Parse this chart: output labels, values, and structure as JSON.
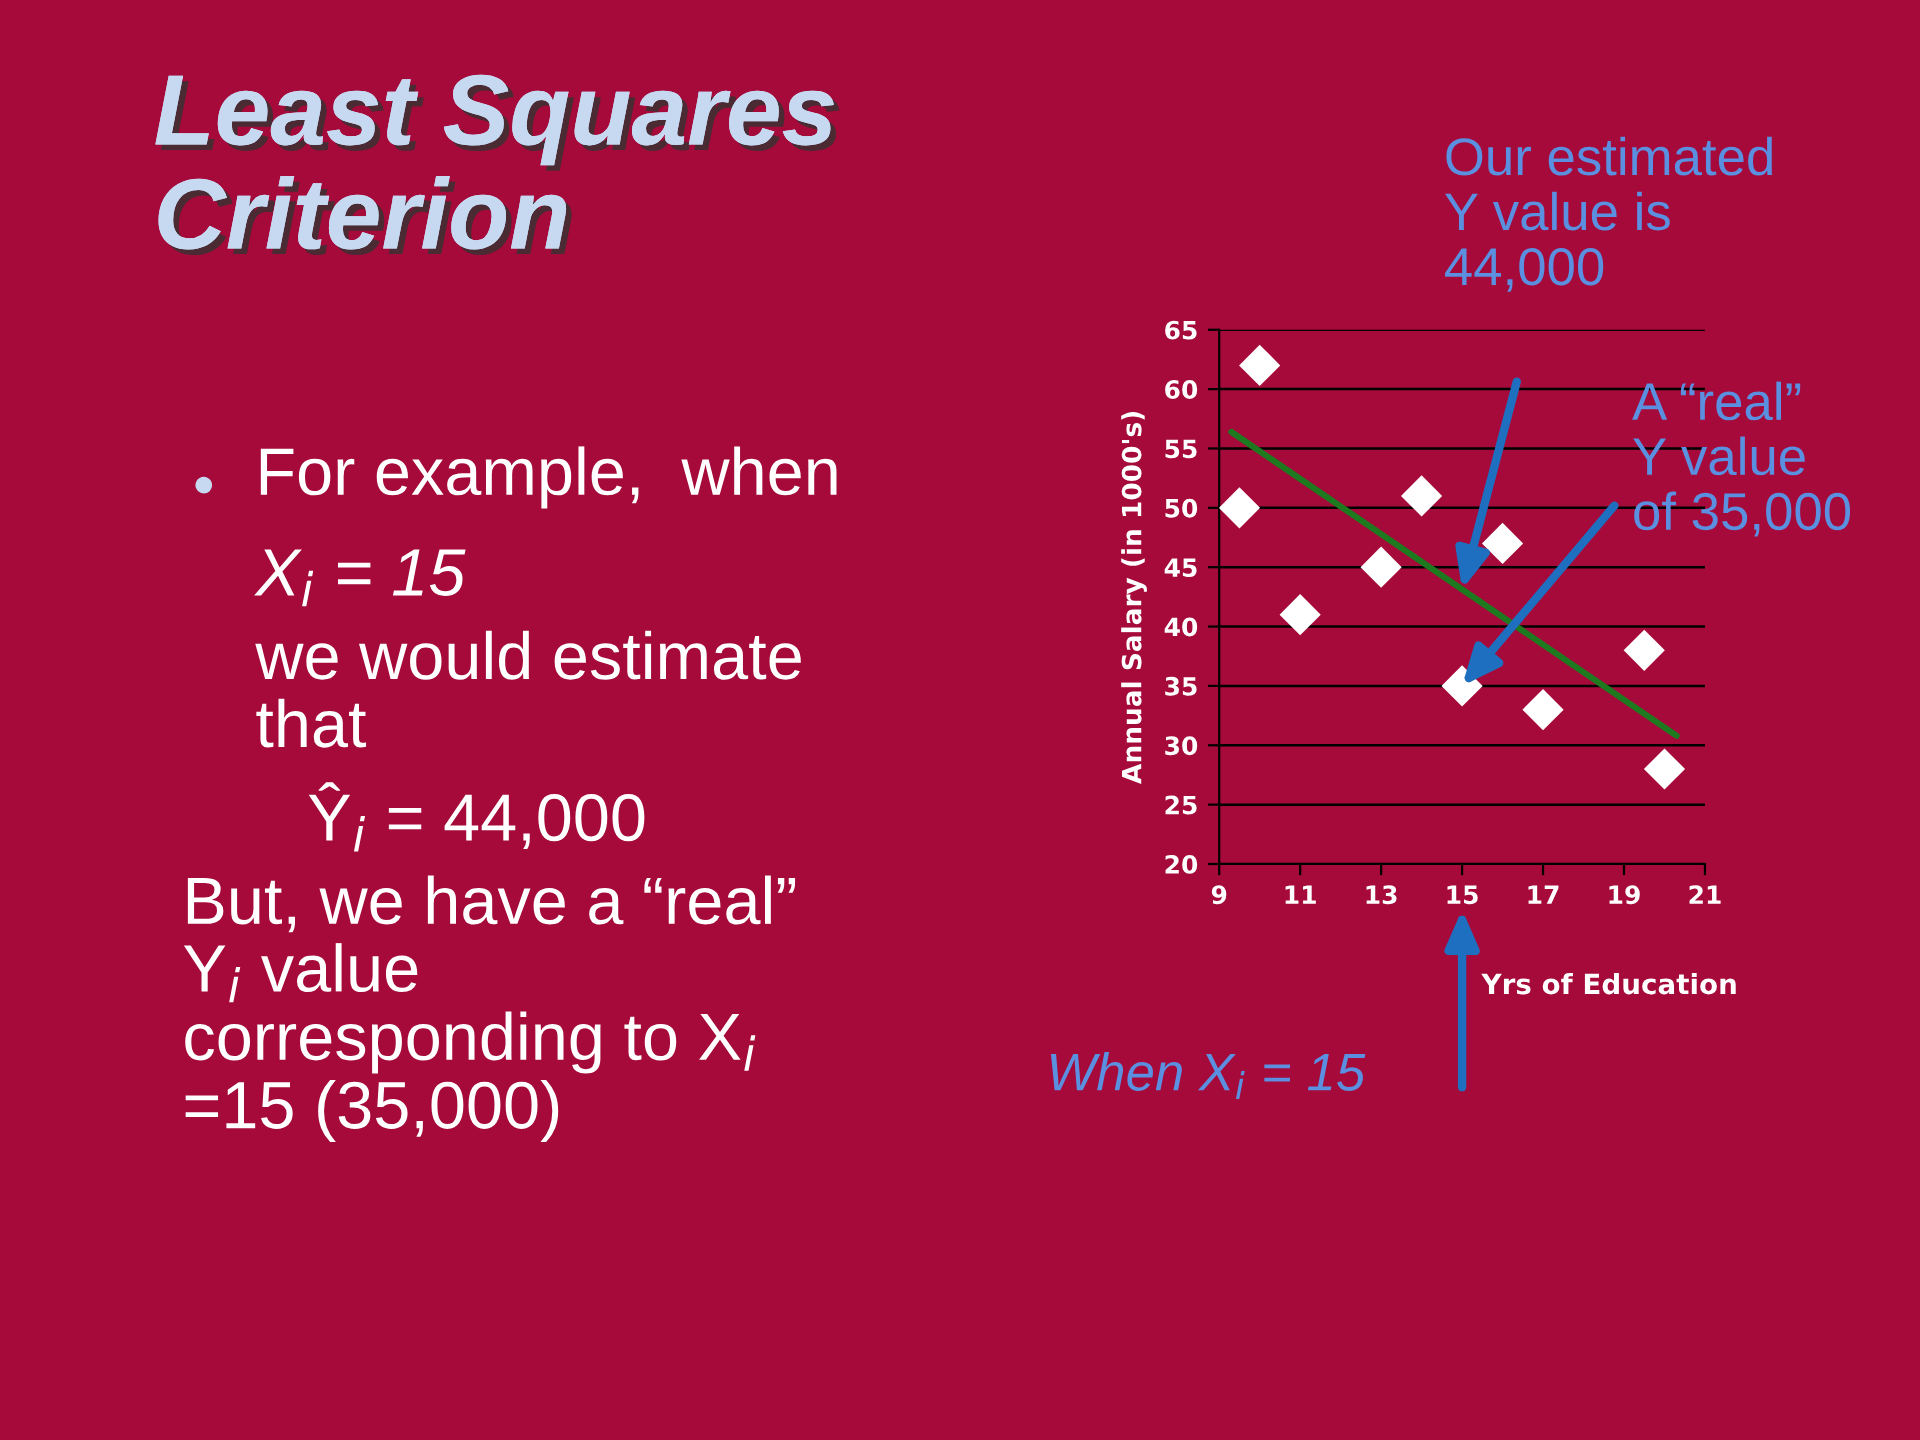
{
  "chart_data": {
    "type": "scatter",
    "title": "Least Squares\nCriterion",
    "xlabel": "Yrs of Education",
    "ylabel": "Annual Salary (in 1000's)",
    "xlim": [
      9,
      21
    ],
    "xticks": [
      9,
      11,
      13,
      15,
      17,
      19,
      21
    ],
    "ylim": [
      20,
      65
    ],
    "yticks": [
      20,
      25,
      30,
      35,
      40,
      45,
      50,
      55,
      60,
      65
    ],
    "grid": "y",
    "legend": false,
    "series": [
      {
        "type": "scatter",
        "color": "#ffffff",
        "marker": "diamond",
        "x": [
          9.5,
          10,
          11,
          13,
          14,
          15,
          16,
          17,
          19.5,
          20
        ],
        "values": [
          50,
          62,
          41,
          45,
          51,
          35,
          47,
          33,
          38,
          28
        ]
      },
      {
        "type": "line",
        "color": "#1e7a1e",
        "marker": "none",
        "line_style": "solid",
        "x": [
          9.3,
          20.3
        ],
        "values": [
          56.4,
          30.8
        ]
      }
    ],
    "annotations": [
      "Our estimated\nY value is\n44,000",
      {
        "text": "A “real”\nY value\nof 35,000",
        "x": 15,
        "y": 35
      },
      "When X$_{i}$ = 15",
      "●",
      "For example,  when",
      "X$_{i}$ = 15",
      "we would estimate\nthat",
      "Ŷ$_{i}$ = 44,000",
      "But, we have a “real”\nY$_{i}$ value\ncorresponding to X$_{i}$\n=15 (35,000)"
    ]
  }
}
